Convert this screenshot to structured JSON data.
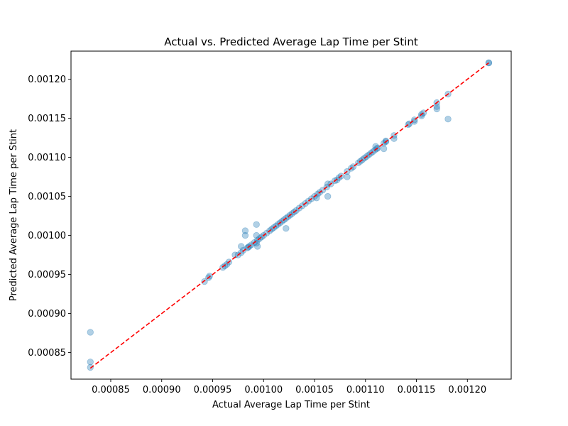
{
  "chart_data": {
    "type": "scatter",
    "title": "Actual vs. Predicted Average Lap Time per Stint",
    "xlabel": "Actual Average Lap Time per Stint",
    "ylabel": "Predicted Average Lap Time per Stint",
    "xlim": [
      0.000811,
      0.001243
    ],
    "ylim": [
      0.000816,
      0.001236
    ],
    "xticks": [
      0.00085,
      0.0009,
      0.00095,
      0.001,
      0.00105,
      0.0011,
      0.00115,
      0.0012
    ],
    "xtick_labels": [
      "0.00085",
      "0.00090",
      "0.00095",
      "0.00100",
      "0.00105",
      "0.00110",
      "0.00115",
      "0.00120"
    ],
    "yticks": [
      0.00085,
      0.0009,
      0.00095,
      0.001,
      0.00105,
      0.0011,
      0.00115,
      0.0012
    ],
    "ytick_labels": [
      "0.00085",
      "0.00090",
      "0.00095",
      "0.00100",
      "0.00105",
      "0.00110",
      "0.00115",
      "0.00120"
    ],
    "grid": false,
    "point_color": "#1f77b4",
    "point_alpha": 0.35,
    "reference_line": {
      "style": "dashed",
      "color": "#ff0000",
      "x": [
        0.00083,
        0.001221
      ],
      "y": [
        0.00083,
        0.001221
      ]
    },
    "series": [
      {
        "x": [
          0.00083,
          0.00083,
          0.00083,
          0.000942,
          0.000946,
          0.000947,
          0.00096,
          0.000962,
          0.000964,
          0.000966,
          0.000972,
          0.000975,
          0.000978,
          0.000978,
          0.00098,
          0.000982,
          0.000982,
          0.000984,
          0.000985,
          0.000986,
          0.000988,
          0.000991,
          0.000993,
          0.000993,
          0.000993,
          0.000994,
          0.000994,
          0.000996,
          0.000998,
          0.001,
          0.001003,
          0.001006,
          0.001008,
          0.00101,
          0.001012,
          0.001014,
          0.001016,
          0.001018,
          0.00102,
          0.001022,
          0.001022,
          0.001024,
          0.001026,
          0.001028,
          0.00103,
          0.001032,
          0.001035,
          0.001038,
          0.001041,
          0.001044,
          0.001047,
          0.00105,
          0.001052,
          0.001053,
          0.001055,
          0.001058,
          0.001062,
          0.001063,
          0.001063,
          0.001066,
          0.00107,
          0.001072,
          0.001074,
          0.001076,
          0.001082,
          0.001082,
          0.001086,
          0.001088,
          0.001093,
          0.001095,
          0.001097,
          0.001099,
          0.001101,
          0.001103,
          0.001105,
          0.001107,
          0.001109,
          0.001111,
          0.00111,
          0.001112,
          0.001118,
          0.001118,
          0.00112,
          0.00112,
          0.001128,
          0.001128,
          0.001142,
          0.001143,
          0.001148,
          0.001148,
          0.001155,
          0.001155,
          0.001157,
          0.00117,
          0.00117,
          0.00117,
          0.001181,
          0.001181,
          0.001221,
          0.001221
        ],
        "y": [
          0.000876,
          0.000838,
          0.000831,
          0.000941,
          0.000946,
          0.000948,
          0.000959,
          0.000961,
          0.000963,
          0.000966,
          0.000975,
          0.000975,
          0.000978,
          0.000986,
          0.000981,
          0.001006,
          0.001,
          0.000984,
          0.000985,
          0.000986,
          0.000988,
          0.000991,
          0.001014,
          0.001,
          0.00099,
          0.000986,
          0.000994,
          0.000996,
          0.000998,
          0.001,
          0.001003,
          0.001006,
          0.001008,
          0.00101,
          0.001012,
          0.001014,
          0.001016,
          0.001018,
          0.00102,
          0.001009,
          0.001022,
          0.001024,
          0.001026,
          0.001028,
          0.00103,
          0.001032,
          0.001035,
          0.001038,
          0.001041,
          0.001044,
          0.001047,
          0.00105,
          0.001048,
          0.001053,
          0.001055,
          0.001058,
          0.001062,
          0.00105,
          0.001066,
          0.001066,
          0.00107,
          0.001071,
          0.001074,
          0.001076,
          0.001075,
          0.001082,
          0.001086,
          0.001088,
          0.001093,
          0.001095,
          0.001097,
          0.001099,
          0.001101,
          0.001103,
          0.001105,
          0.001107,
          0.001109,
          0.001111,
          0.001114,
          0.001112,
          0.001111,
          0.001118,
          0.00112,
          0.001121,
          0.001124,
          0.001128,
          0.001142,
          0.001143,
          0.001146,
          0.001148,
          0.001155,
          0.001153,
          0.001157,
          0.001165,
          0.001162,
          0.00117,
          0.001149,
          0.001181,
          0.001221,
          0.001221
        ]
      }
    ]
  }
}
